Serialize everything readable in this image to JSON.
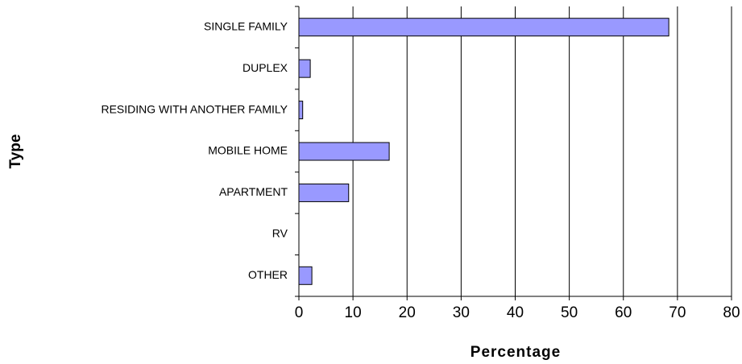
{
  "chart_data": {
    "type": "bar",
    "orientation": "horizontal",
    "x_label": "Percentage",
    "y_label": "Type",
    "categories": [
      "SINGLE FAMILY",
      "DUPLEX",
      "RESIDING WITH ANOTHER FAMILY",
      "MOBILE HOME",
      "APARTMENT",
      "RV",
      "OTHER"
    ],
    "values": [
      68.4,
      2.1,
      0.7,
      16.7,
      9.2,
      0,
      2.4
    ],
    "color": "#9999ff",
    "xlim": [
      0,
      80
    ],
    "xticks": [
      0,
      10,
      20,
      30,
      40,
      50,
      60,
      70,
      80
    ],
    "grid": true
  }
}
